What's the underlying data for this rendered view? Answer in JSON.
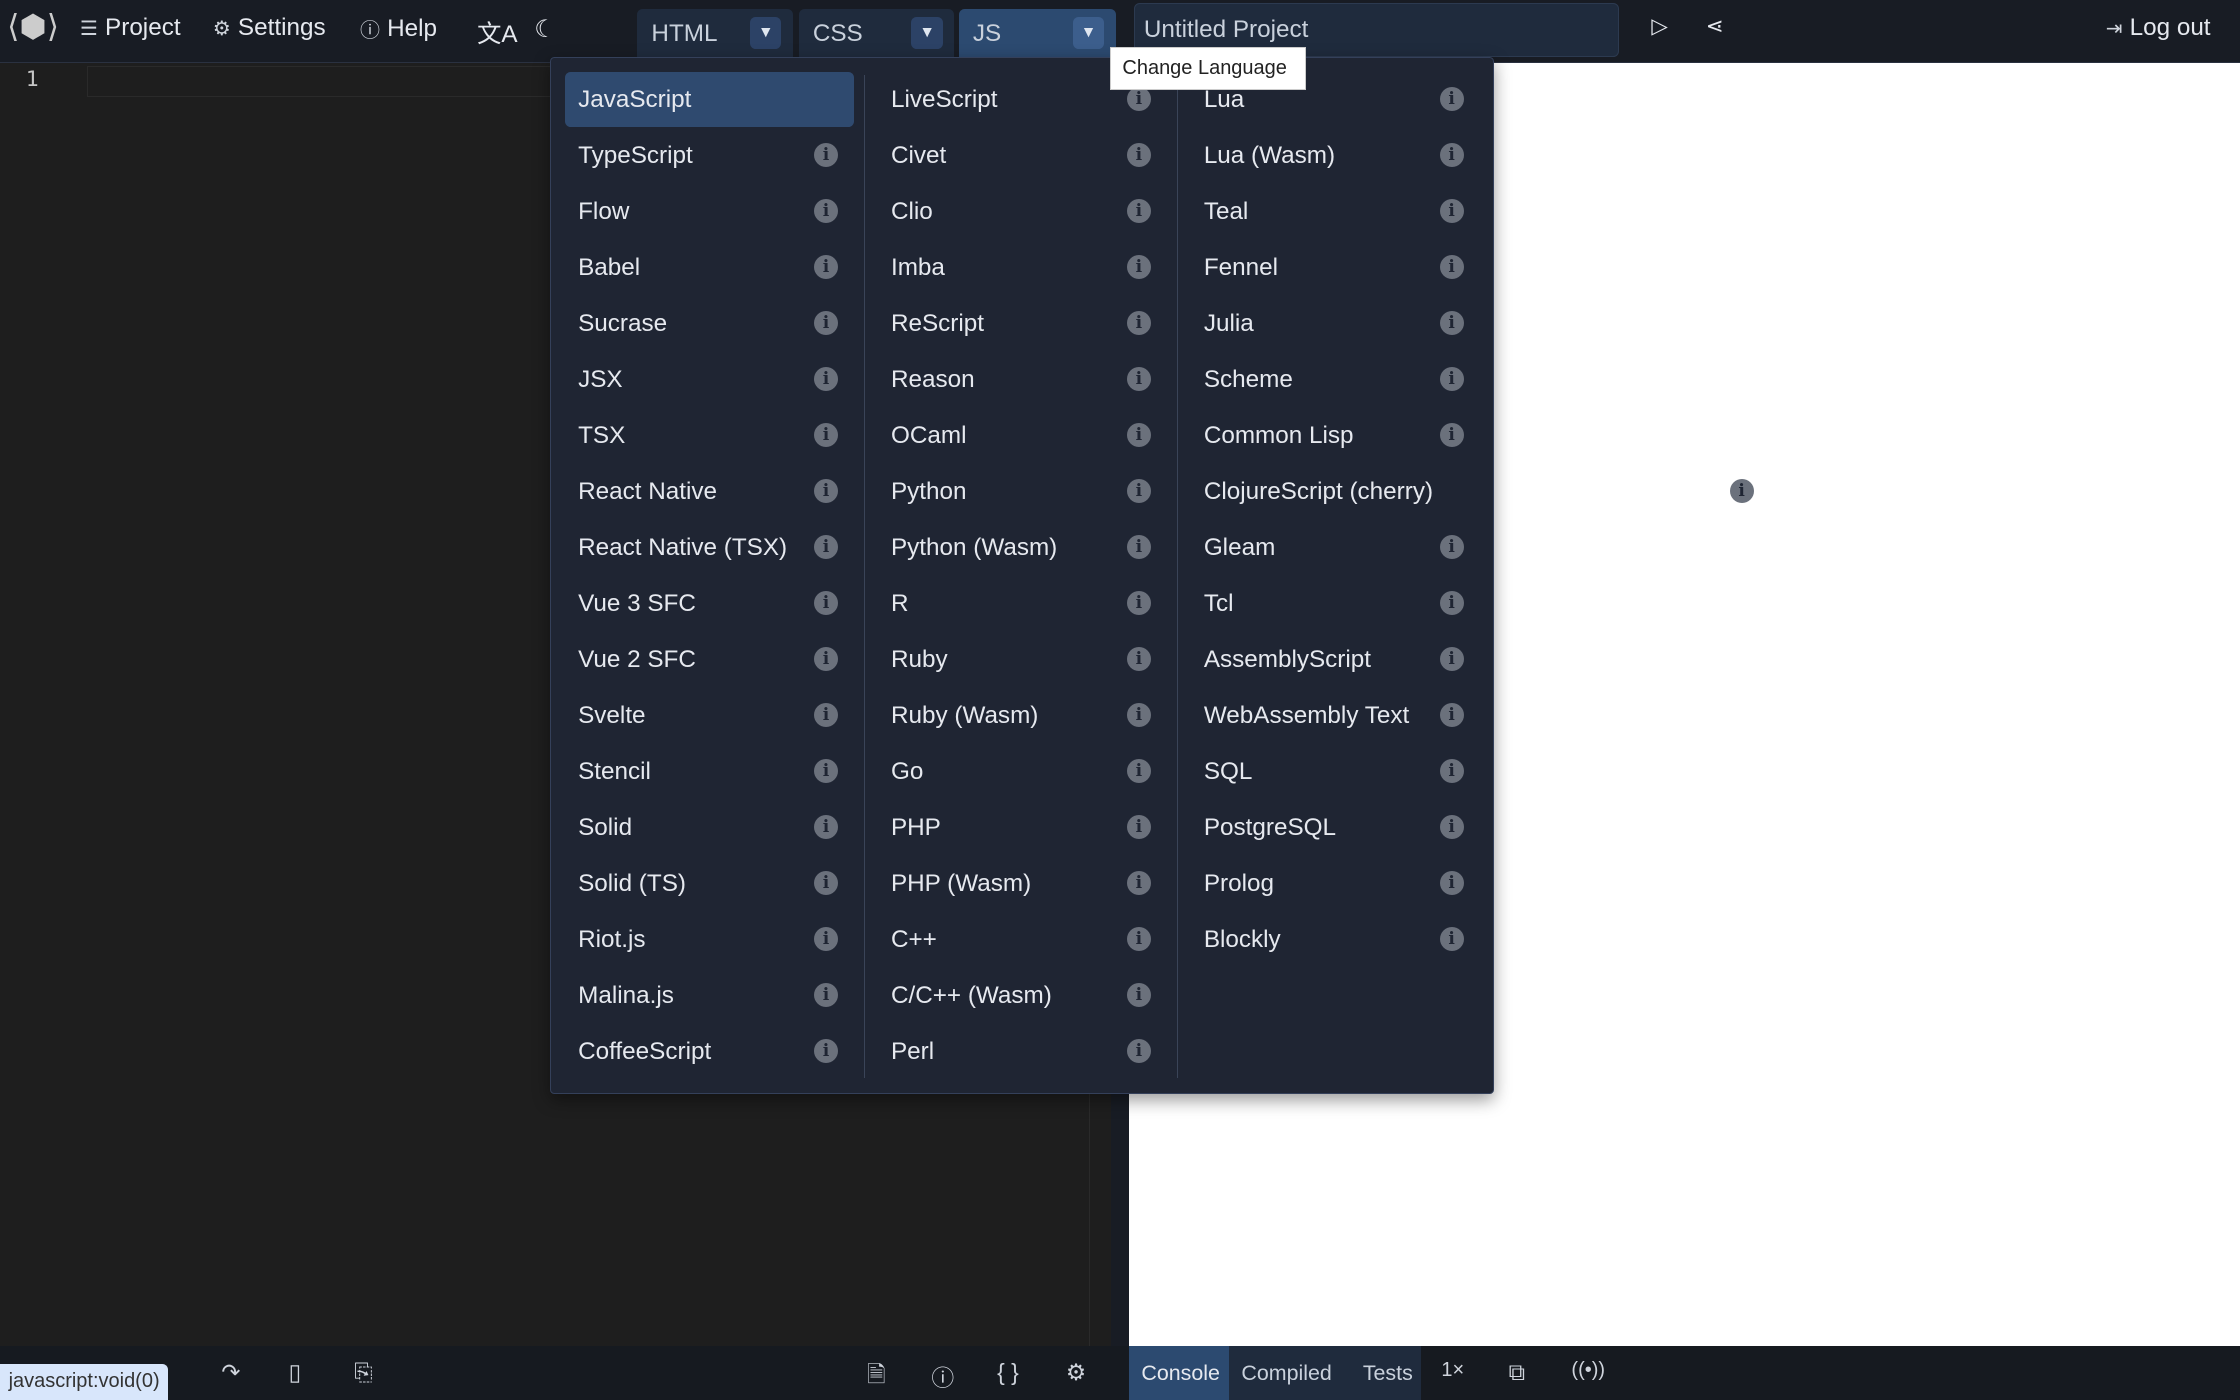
{
  "header": {
    "logo": "livecodes-logo",
    "project": "Project",
    "settings": "Settings",
    "help": "Help",
    "language_icon": "translate-icon",
    "theme_icon": "moon-icon",
    "tabs": [
      {
        "label": "HTML"
      },
      {
        "label": "CSS"
      },
      {
        "label": "JS"
      }
    ],
    "title_value": "Untitled Project",
    "logout": "Log out"
  },
  "tooltip": "Change Language",
  "editor": {
    "line_numbers": [
      "1"
    ]
  },
  "dropdown": {
    "selected": "JavaScript",
    "columns": [
      [
        "JavaScript",
        "TypeScript",
        "Flow",
        "Babel",
        "Sucrase",
        "JSX",
        "TSX",
        "React Native",
        "React Native (TSX)",
        "Vue 3 SFC",
        "Vue 2 SFC",
        "Svelte",
        "Stencil",
        "Solid",
        "Solid (TS)",
        "Riot.js",
        "Malina.js",
        "CoffeeScript"
      ],
      [
        "LiveScript",
        "Civet",
        "Clio",
        "Imba",
        "ReScript",
        "Reason",
        "OCaml",
        "Python",
        "Python (Wasm)",
        "R",
        "Ruby",
        "Ruby (Wasm)",
        "Go",
        "PHP",
        "PHP (Wasm)",
        "C++",
        "C/C++ (Wasm)",
        "Perl"
      ],
      [
        "Lua",
        "Lua (Wasm)",
        "Teal",
        "Fennel",
        "Julia",
        "Scheme",
        "Common Lisp",
        "ClojureScript (cherry)",
        "Gleam",
        "Tcl",
        "AssemblyScript",
        "WebAssembly Text",
        "SQL",
        "PostgreSQL",
        "Prolog",
        "Blockly"
      ]
    ]
  },
  "console_tabs": [
    {
      "label": "Console"
    },
    {
      "label": "Compiled"
    },
    {
      "label": "Tests"
    }
  ],
  "speed": "1×",
  "status_url": "javascript:void(0)",
  "colors": {
    "accent": "#2c4a70",
    "topbar": "#181c24",
    "dropdown": "#1f2533"
  }
}
